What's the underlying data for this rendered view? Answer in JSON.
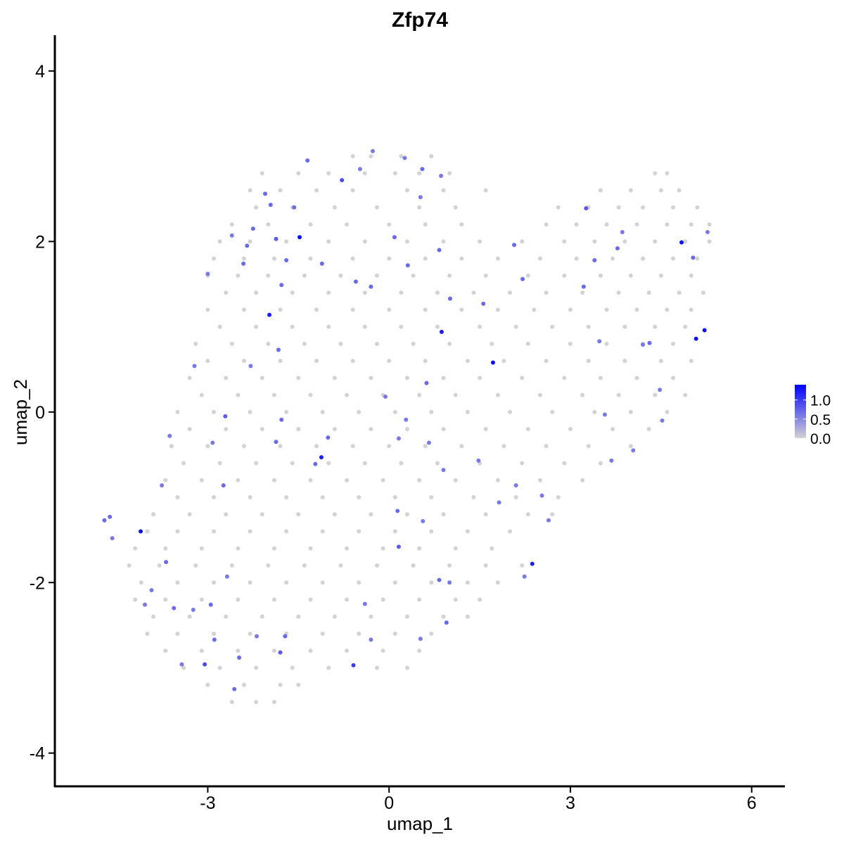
{
  "chart_data": {
    "type": "scatter",
    "title": "Zfp74",
    "xlabel": "umap_1",
    "ylabel": "umap_2",
    "xlim": [
      -5.53,
      6.55
    ],
    "ylim": [
      -4.39,
      4.42
    ],
    "x_ticks": [
      "-3",
      "0",
      "3",
      "6"
    ],
    "x_tick_values": [
      -3,
      0,
      3,
      6
    ],
    "y_ticks": [
      "4",
      "2",
      "0",
      "-2",
      "-4"
    ],
    "y_tick_values": [
      4,
      2,
      0,
      -2,
      -4
    ],
    "grid": false,
    "legend": {
      "placement": "right",
      "type": "colorbar",
      "labels": [
        "1.0",
        "0.5",
        "0.0"
      ],
      "label_values": [
        1.0,
        0.5,
        0.0
      ],
      "range": [
        0,
        1.4
      ]
    },
    "colors": {
      "low": "#d3d3d3",
      "high": "#0000ff"
    },
    "zero_expression_points": [
      {
        "y": 3.0,
        "x": [
          -0.6,
          -0.3,
          0.2,
          0.7
        ]
      },
      {
        "y": 2.8,
        "x": [
          -2.1,
          -1.5,
          -1.0,
          -0.4,
          0.1,
          0.5,
          1.0,
          4.4,
          4.6
        ]
      },
      {
        "y": 2.6,
        "x": [
          -2.3,
          -1.8,
          -1.2,
          -0.6,
          0.3,
          0.9,
          1.6,
          3.5,
          4.0,
          4.5,
          4.8
        ]
      },
      {
        "y": 2.4,
        "x": [
          -2.2,
          -1.6,
          -0.9,
          -0.2,
          0.5,
          1.1,
          2.8,
          3.3,
          3.8,
          4.2,
          4.7,
          5.1
        ]
      },
      {
        "y": 2.2,
        "x": [
          -2.6,
          -2.0,
          -1.3,
          -0.7,
          0.0,
          0.6,
          1.2,
          2.6,
          3.1,
          3.6,
          4.1,
          4.6,
          5.0,
          5.3
        ]
      },
      {
        "y": 2.0,
        "x": [
          -2.8,
          -2.3,
          -1.7,
          -1.0,
          -0.4,
          0.3,
          0.9,
          1.5,
          2.2,
          2.9,
          3.4,
          3.9,
          4.4,
          4.9,
          5.3
        ]
      },
      {
        "y": 1.8,
        "x": [
          -2.9,
          -2.4,
          -1.9,
          -1.3,
          -0.6,
          0.0,
          0.6,
          1.2,
          1.8,
          2.5,
          3.1,
          3.7,
          4.2,
          4.7,
          5.1
        ]
      },
      {
        "y": 1.6,
        "x": [
          -3.0,
          -2.5,
          -2.0,
          -1.4,
          -0.8,
          -0.2,
          0.4,
          1.0,
          1.6,
          2.3,
          2.9,
          3.5,
          4.0,
          4.5,
          5.0
        ]
      },
      {
        "y": 1.4,
        "x": [
          -2.7,
          -2.2,
          -1.6,
          -1.0,
          -0.4,
          0.2,
          0.8,
          1.4,
          2.0,
          2.6,
          3.2,
          3.8,
          4.3,
          4.8,
          5.2
        ]
      },
      {
        "y": 1.2,
        "x": [
          -3.0,
          -2.4,
          -1.8,
          -1.2,
          -0.6,
          0.0,
          0.6,
          1.2,
          1.8,
          2.4,
          3.0,
          3.6,
          4.1,
          4.6,
          5.0
        ]
      },
      {
        "y": 1.0,
        "x": [
          -2.8,
          -2.2,
          -1.6,
          -1.0,
          -0.4,
          0.2,
          0.8,
          1.5,
          2.1,
          2.7,
          3.3,
          3.9,
          4.4,
          4.9
        ]
      },
      {
        "y": 0.8,
        "x": [
          -3.2,
          -2.6,
          -2.0,
          -1.4,
          -0.8,
          -0.2,
          0.4,
          1.0,
          1.7,
          2.3,
          3.0,
          3.6,
          4.2,
          4.7
        ]
      },
      {
        "y": 0.6,
        "x": [
          -3.0,
          -2.4,
          -1.8,
          -1.2,
          -0.6,
          0.0,
          0.6,
          1.3,
          1.9,
          2.6,
          3.3,
          3.9,
          4.5,
          5.0
        ]
      },
      {
        "y": 0.4,
        "x": [
          -3.3,
          -2.7,
          -2.1,
          -1.5,
          -0.9,
          -0.3,
          0.3,
          0.9,
          1.5,
          2.2,
          2.9,
          3.5,
          4.1,
          4.7
        ]
      },
      {
        "y": 0.2,
        "x": [
          -3.1,
          -2.5,
          -1.9,
          -1.3,
          -0.7,
          -0.1,
          0.5,
          1.1,
          1.8,
          2.5,
          3.2,
          3.8,
          4.4,
          4.9
        ]
      },
      {
        "y": 0.0,
        "x": [
          -3.5,
          -2.9,
          -2.3,
          -1.7,
          -1.1,
          -0.5,
          0.1,
          0.7,
          1.3,
          2.0,
          2.7,
          3.4,
          4.0,
          4.6
        ]
      },
      {
        "y": -0.2,
        "x": [
          -3.3,
          -2.7,
          -2.1,
          -1.5,
          -0.9,
          -0.3,
          0.3,
          0.9,
          1.6,
          2.3,
          3.0,
          3.7,
          4.3
        ]
      },
      {
        "y": -0.4,
        "x": [
          -3.6,
          -3.0,
          -2.4,
          -1.8,
          -1.2,
          -0.6,
          0.0,
          0.6,
          1.2,
          1.9,
          2.6,
          3.3,
          4.0
        ]
      },
      {
        "y": -0.6,
        "x": [
          -3.4,
          -2.8,
          -2.2,
          -1.6,
          -1.0,
          -0.4,
          0.2,
          0.8,
          1.5,
          2.2,
          2.9,
          3.5
        ]
      },
      {
        "y": -0.8,
        "x": [
          -3.7,
          -3.1,
          -2.5,
          -1.9,
          -1.3,
          -0.7,
          -0.1,
          0.5,
          1.1,
          1.8,
          2.5,
          3.2
        ]
      },
      {
        "y": -1.0,
        "x": [
          -3.5,
          -2.9,
          -2.3,
          -1.7,
          -1.1,
          -0.5,
          0.1,
          0.7,
          1.4,
          2.1,
          2.8
        ]
      },
      {
        "y": -1.2,
        "x": [
          -3.9,
          -3.3,
          -2.7,
          -2.1,
          -1.5,
          -0.9,
          -0.3,
          0.3,
          0.9,
          1.6,
          2.3,
          2.7
        ]
      },
      {
        "y": -1.4,
        "x": [
          -4.0,
          -3.5,
          -2.9,
          -2.3,
          -1.7,
          -1.1,
          -0.5,
          0.1,
          0.7,
          1.3,
          2.0
        ]
      },
      {
        "y": -1.6,
        "x": [
          -4.2,
          -3.7,
          -3.1,
          -2.5,
          -1.9,
          -1.3,
          -0.7,
          -0.1,
          0.5,
          1.1,
          1.7
        ]
      },
      {
        "y": -1.8,
        "x": [
          -4.3,
          -3.8,
          -3.2,
          -2.6,
          -2.0,
          -1.4,
          -0.8,
          -0.2,
          0.4,
          1.0,
          1.6,
          2.2
        ]
      },
      {
        "y": -2.0,
        "x": [
          -4.1,
          -3.5,
          -2.9,
          -2.3,
          -1.7,
          -1.1,
          -0.5,
          0.1,
          0.7,
          1.3,
          1.8
        ]
      },
      {
        "y": -2.2,
        "x": [
          -4.2,
          -3.7,
          -3.1,
          -2.5,
          -1.9,
          -1.3,
          -0.7,
          -0.1,
          0.5,
          1.1,
          1.5
        ]
      },
      {
        "y": -2.4,
        "x": [
          -3.9,
          -3.3,
          -2.7,
          -2.1,
          -1.5,
          -0.9,
          -0.3,
          0.3,
          0.9,
          1.3
        ]
      },
      {
        "y": -2.6,
        "x": [
          -4.0,
          -3.5,
          -2.9,
          -2.3,
          -1.7,
          -1.1,
          -0.5,
          0.1,
          0.7
        ]
      },
      {
        "y": -2.8,
        "x": [
          -3.7,
          -3.1,
          -2.5,
          -1.9,
          -1.3,
          -0.7,
          -0.1,
          0.5
        ]
      },
      {
        "y": -3.0,
        "x": [
          -3.4,
          -2.8,
          -2.2,
          -1.6,
          -1.0,
          -0.2,
          0.3
        ]
      },
      {
        "y": -3.2,
        "x": [
          -3.0,
          -2.4,
          -1.8,
          -1.5
        ]
      },
      {
        "y": -3.4,
        "x": [
          -2.6,
          -2.2,
          -1.9
        ]
      }
    ],
    "expressing_points": [
      [
        -1.48,
        2.05,
        1.3
      ],
      [
        -1.98,
        1.14,
        1.2
      ],
      [
        0.87,
        0.94,
        1.2
      ],
      [
        1.72,
        0.58,
        1.3
      ],
      [
        -1.12,
        -0.53,
        1.2
      ],
      [
        -4.11,
        -1.4,
        1.3
      ],
      [
        2.37,
        -1.78,
        1.2
      ],
      [
        4.84,
        1.99,
        1.3
      ],
      [
        5.08,
        0.86,
        1.3
      ],
      [
        5.22,
        0.96,
        1.3
      ],
      [
        -0.59,
        -2.97,
        1.0
      ],
      [
        -3.05,
        -2.96,
        0.9
      ],
      [
        -0.78,
        2.72,
        0.9
      ],
      [
        -1.35,
        2.95,
        0.7
      ],
      [
        -1.96,
        2.43,
        0.7
      ],
      [
        -2.35,
        1.95,
        0.7
      ],
      [
        -2.41,
        1.74,
        0.7
      ],
      [
        -1.7,
        1.78,
        0.7
      ],
      [
        -1.11,
        1.74,
        0.7
      ],
      [
        -0.55,
        1.53,
        0.7
      ],
      [
        -0.3,
        1.47,
        0.7
      ],
      [
        0.09,
        2.05,
        0.7
      ],
      [
        0.31,
        1.72,
        0.7
      ],
      [
        0.83,
        1.9,
        0.7
      ],
      [
        1.01,
        1.33,
        0.7
      ],
      [
        1.56,
        1.27,
        0.7
      ],
      [
        2.21,
        1.56,
        0.7
      ],
      [
        2.07,
        1.96,
        0.7
      ],
      [
        3.26,
        2.39,
        0.8
      ],
      [
        3.4,
        1.78,
        0.7
      ],
      [
        3.22,
        1.47,
        0.7
      ],
      [
        3.78,
        1.92,
        0.7
      ],
      [
        3.86,
        2.11,
        0.6
      ],
      [
        5.03,
        1.81,
        0.7
      ],
      [
        5.27,
        2.11,
        0.6
      ],
      [
        4.31,
        0.81,
        0.7
      ],
      [
        4.2,
        0.79,
        0.6
      ],
      [
        3.48,
        0.83,
        0.6
      ],
      [
        4.48,
        0.26,
        0.6
      ],
      [
        4.52,
        -0.1,
        0.6
      ],
      [
        3.57,
        -0.03,
        0.6
      ],
      [
        3.68,
        -0.57,
        0.6
      ],
      [
        4.04,
        -0.45,
        0.6
      ],
      [
        1.82,
        -1.06,
        0.6
      ],
      [
        1.48,
        -0.57,
        0.6
      ],
      [
        2.1,
        -0.86,
        0.6
      ],
      [
        0.62,
        0.34,
        0.7
      ],
      [
        -0.06,
        0.18,
        0.6
      ],
      [
        0.16,
        -0.31,
        0.6
      ],
      [
        0.28,
        -0.09,
        0.6
      ],
      [
        0.66,
        -0.36,
        0.6
      ],
      [
        0.9,
        -0.68,
        0.6
      ],
      [
        0.14,
        -1.16,
        0.7
      ],
      [
        0.56,
        -1.28,
        0.6
      ],
      [
        0.16,
        -1.58,
        0.8
      ],
      [
        0.83,
        -1.97,
        0.7
      ],
      [
        1.0,
        -2.0,
        0.6
      ],
      [
        0.95,
        -2.47,
        0.7
      ],
      [
        0.52,
        -2.66,
        0.6
      ],
      [
        -0.4,
        -2.25,
        0.6
      ],
      [
        -0.3,
        -2.67,
        0.6
      ],
      [
        -1.01,
        -0.3,
        0.7
      ],
      [
        -1.22,
        -0.61,
        0.7
      ],
      [
        -1.87,
        -0.35,
        0.7
      ],
      [
        -1.78,
        -0.09,
        0.7
      ],
      [
        -2.71,
        -0.05,
        0.8
      ],
      [
        -2.92,
        -0.36,
        0.6
      ],
      [
        -2.74,
        -0.86,
        0.7
      ],
      [
        -3.63,
        -0.28,
        0.6
      ],
      [
        -3.76,
        -0.86,
        0.6
      ],
      [
        -3.69,
        -1.76,
        0.7
      ],
      [
        -3.56,
        -2.3,
        0.7
      ],
      [
        -3.24,
        -2.32,
        0.6
      ],
      [
        -2.95,
        -2.26,
        0.7
      ],
      [
        -2.68,
        -1.93,
        0.6
      ],
      [
        -2.89,
        -2.67,
        0.7
      ],
      [
        -2.19,
        -2.63,
        0.6
      ],
      [
        -1.72,
        -2.63,
        0.7
      ],
      [
        -1.8,
        -2.82,
        0.8
      ],
      [
        -2.48,
        -2.88,
        0.7
      ],
      [
        -2.56,
        -3.25,
        0.7
      ],
      [
        -3.43,
        -2.96,
        0.6
      ],
      [
        -1.83,
        0.73,
        0.7
      ],
      [
        -2.29,
        0.54,
        0.6
      ],
      [
        -3.22,
        0.54,
        0.6
      ],
      [
        -3.0,
        1.62,
        0.6
      ],
      [
        -2.6,
        2.07,
        0.6
      ],
      [
        -2.25,
        2.15,
        0.7
      ],
      [
        -2.05,
        2.56,
        0.7
      ],
      [
        -1.87,
        2.03,
        0.8
      ],
      [
        -1.78,
        1.49,
        0.7
      ],
      [
        -1.57,
        2.4,
        0.7
      ],
      [
        -0.48,
        2.85,
        0.6
      ],
      [
        -0.27,
        3.06,
        0.6
      ],
      [
        0.26,
        2.98,
        0.6
      ],
      [
        0.55,
        2.85,
        0.7
      ],
      [
        0.86,
        2.77,
        0.6
      ],
      [
        0.52,
        2.52,
        0.6
      ],
      [
        -4.71,
        -1.27,
        0.7
      ],
      [
        -4.62,
        -1.23,
        0.7
      ],
      [
        -4.58,
        -1.48,
        0.6
      ],
      [
        -3.93,
        -2.09,
        0.6
      ],
      [
        -4.04,
        -2.26,
        0.6
      ],
      [
        2.53,
        -0.98,
        0.6
      ],
      [
        2.64,
        -1.27,
        0.6
      ],
      [
        2.24,
        -1.93,
        0.6
      ]
    ]
  }
}
